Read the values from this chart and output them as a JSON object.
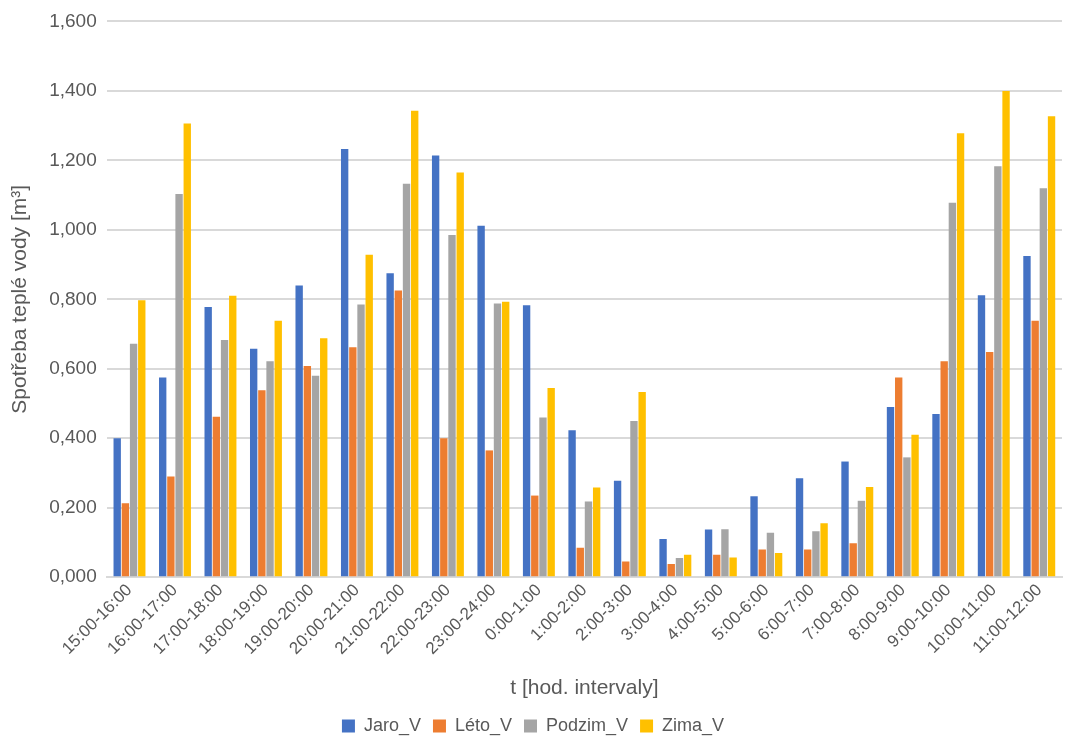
{
  "chart_data": {
    "type": "bar",
    "xlabel": "t [hod. intervaly]",
    "ylabel": "Spotřeba teplé vody [m³]",
    "categories": [
      "15:00-16:00",
      "16:00-17:00",
      "17:00-18:00",
      "18:00-19:00",
      "19:00-20:00",
      "20:00-21:00",
      "21:00-22:00",
      "22:00-23:00",
      "23:00-24:00",
      "0:00-1:00",
      "1:00-2:00",
      "2:00-3:00",
      "3:00-4:00",
      "4:00-5:00",
      "5:00-6:00",
      "6:00-7:00",
      "7:00-8:00",
      "8:00-9:00",
      "9:00-10:00",
      "10:00-11:00",
      "11:00-12:00"
    ],
    "series": [
      {
        "name": "Jaro_V",
        "color": "#4472c4",
        "values": [
          0.4,
          0.575,
          0.778,
          0.658,
          0.84,
          1.233,
          0.875,
          1.214,
          1.012,
          0.783,
          0.423,
          0.278,
          0.11,
          0.137,
          0.233,
          0.285,
          0.333,
          0.49,
          0.47,
          0.812,
          0.925
        ]
      },
      {
        "name": "Léto_V",
        "color": "#ed7d31",
        "values": [
          0.213,
          0.29,
          0.462,
          0.538,
          0.608,
          0.662,
          0.825,
          0.4,
          0.365,
          0.235,
          0.085,
          0.045,
          0.038,
          0.065,
          0.08,
          0.08,
          0.098,
          0.575,
          0.622,
          0.648,
          0.738
        ]
      },
      {
        "name": "Podzim_V",
        "color": "#a5a5a5",
        "values": [
          0.672,
          1.103,
          0.683,
          0.622,
          0.58,
          0.785,
          1.133,
          0.985,
          0.788,
          0.46,
          0.218,
          0.45,
          0.055,
          0.138,
          0.128,
          0.132,
          0.22,
          0.345,
          1.078,
          1.183,
          1.12
        ]
      },
      {
        "name": "Zima_V",
        "color": "#ffc000",
        "values": [
          0.797,
          1.306,
          0.81,
          0.738,
          0.688,
          0.928,
          1.343,
          1.165,
          0.793,
          0.545,
          0.258,
          0.533,
          0.065,
          0.057,
          0.07,
          0.155,
          0.26,
          0.41,
          1.278,
          1.4,
          1.327
        ]
      }
    ],
    "ylim": [
      0,
      1.6
    ],
    "yticks": [
      {
        "value": 0,
        "label": "0,000"
      },
      {
        "value": 0.2,
        "label": "0,200"
      },
      {
        "value": 0.4,
        "label": "0,400"
      },
      {
        "value": 0.6,
        "label": "0,600"
      },
      {
        "value": 0.8,
        "label": "0,800"
      },
      {
        "value": 1.0,
        "label": "1,000"
      },
      {
        "value": 1.2,
        "label": "1,200"
      },
      {
        "value": 1.4,
        "label": "1,400"
      },
      {
        "value": 1.6,
        "label": "1,600"
      }
    ],
    "grid": "y",
    "legend": "bottom"
  }
}
